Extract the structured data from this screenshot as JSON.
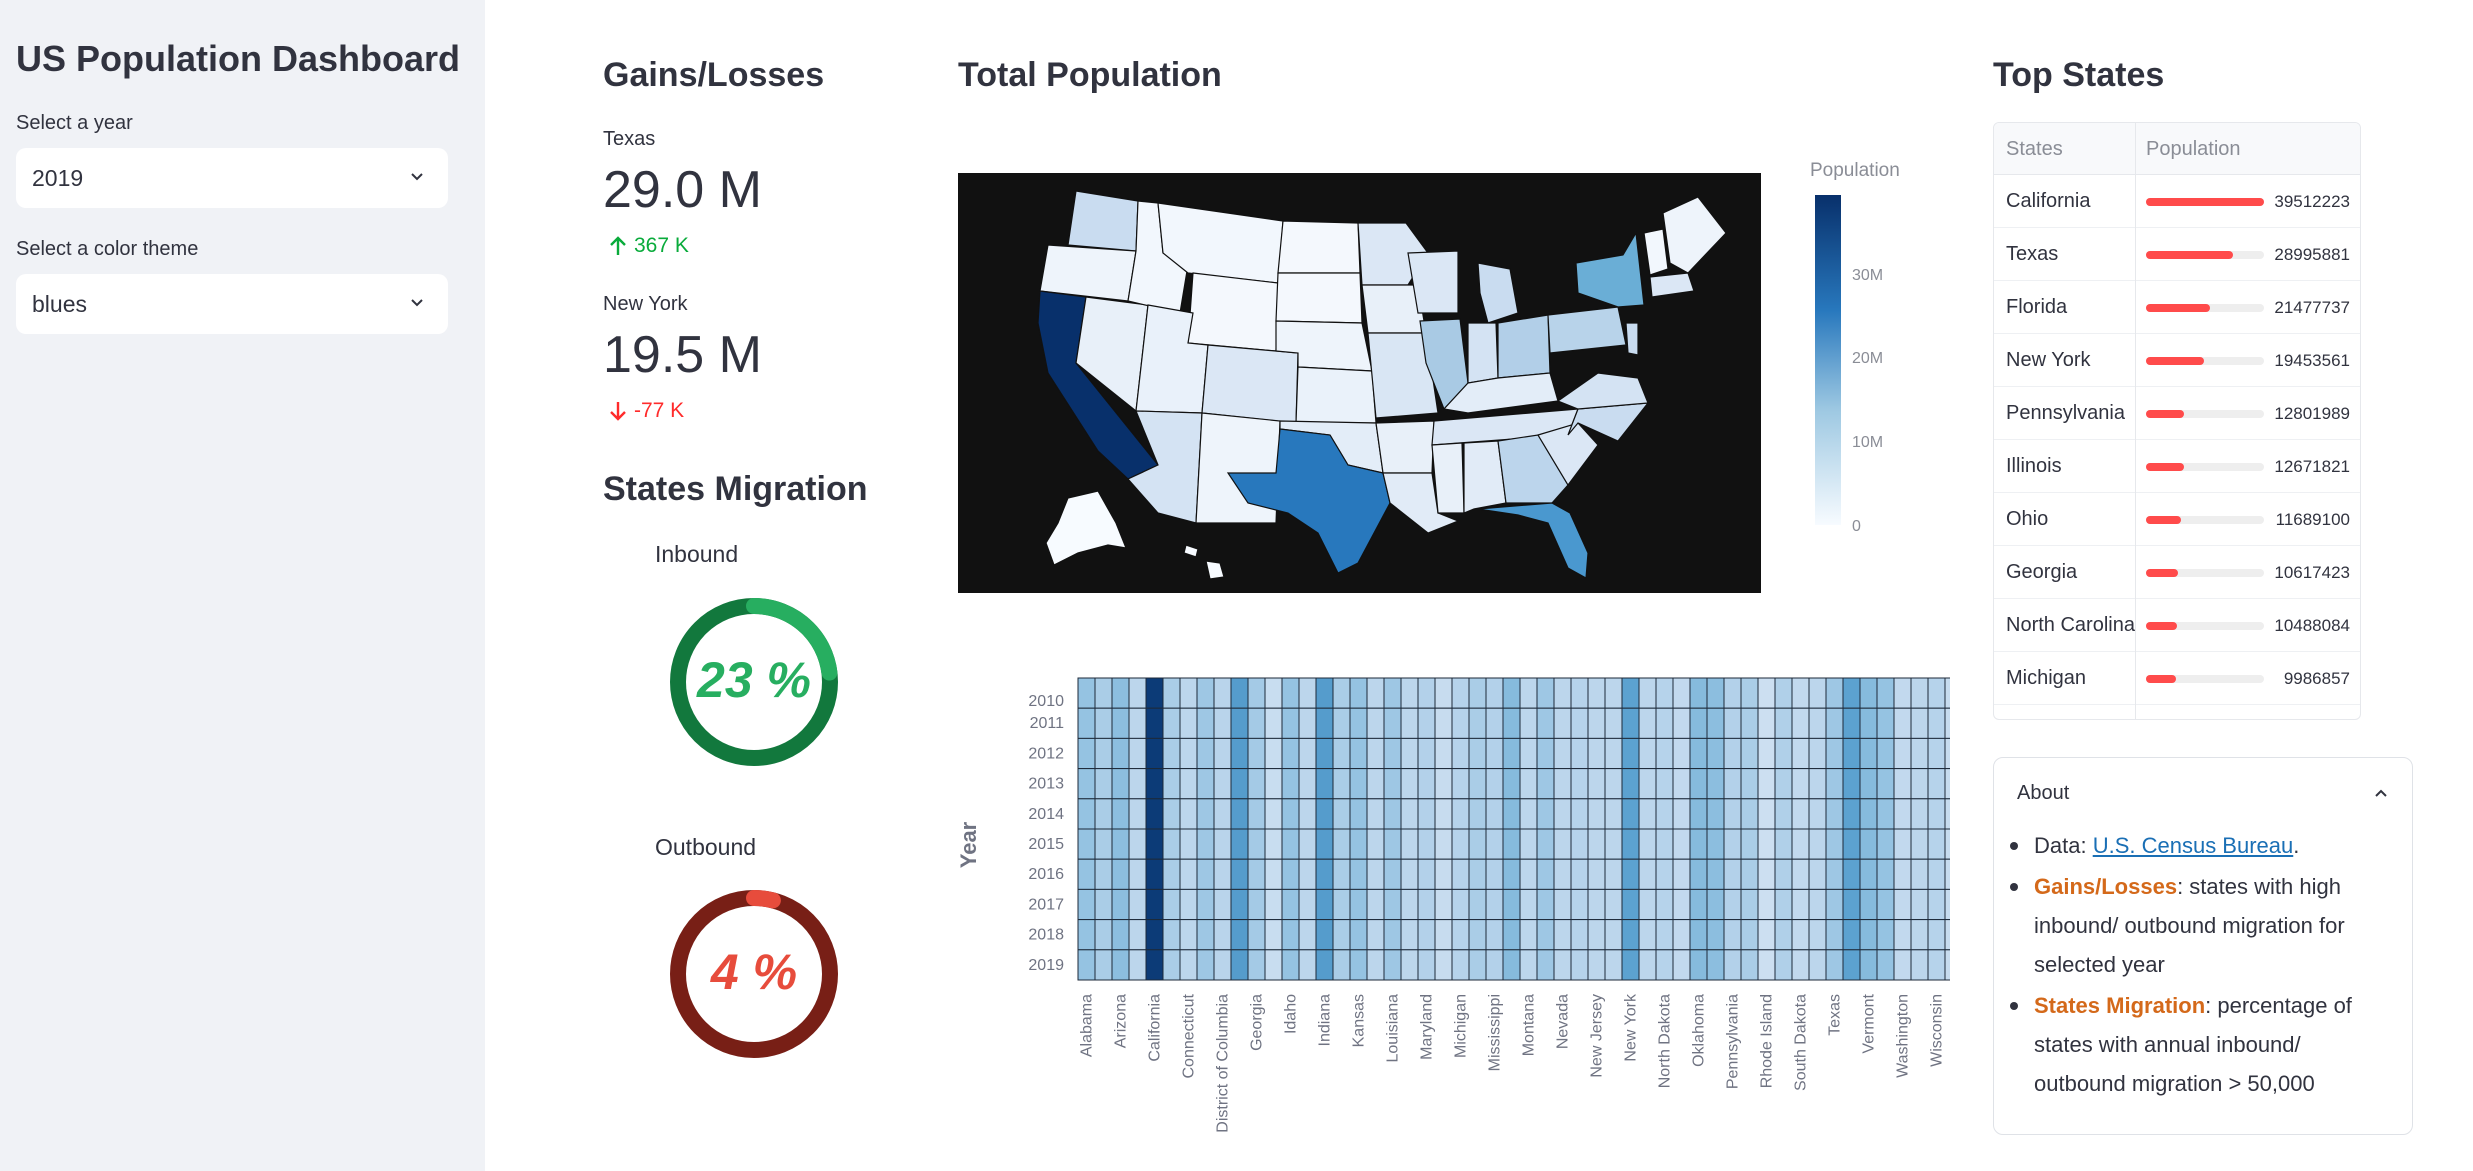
{
  "sidebar": {
    "title": "US Population Dashboard",
    "year_label": "Select a year",
    "year_value": "2019",
    "theme_label": "Select a color theme",
    "theme_value": "blues"
  },
  "gains": {
    "heading": "Gains/Losses",
    "top": {
      "state": "Texas",
      "value": "29.0 M",
      "delta": "367 K",
      "direction": "up",
      "color": "#09ab3b"
    },
    "bottom": {
      "state": "New York",
      "value": "19.5 M",
      "delta": "-77 K",
      "direction": "down",
      "color": "#ff2b2b"
    }
  },
  "migration": {
    "heading": "States Migration",
    "inbound": {
      "label": "Inbound",
      "percent": 23,
      "text": "23 %",
      "color": "#27ae60",
      "track": "#12783d"
    },
    "outbound": {
      "label": "Outbound",
      "percent": 4,
      "text": "4 %",
      "color": "#e74c3c",
      "track": "#781f16"
    }
  },
  "map": {
    "heading": "Total Population",
    "colorbar_title": "Population",
    "colorbar_ticks": [
      "30M",
      "20M",
      "10M",
      "0"
    ]
  },
  "heatmap": {
    "ylabel": "Year",
    "years": [
      "2010",
      "2011",
      "2012",
      "2013",
      "2014",
      "2015",
      "2016",
      "2017",
      "2018",
      "2019"
    ],
    "xlabels": [
      "Alabama",
      "Arizona",
      "California",
      "Connecticut",
      "District of Columbia",
      "Georgia",
      "Idaho",
      "Indiana",
      "Kansas",
      "Louisiana",
      "Maryland",
      "Michigan",
      "Mississippi",
      "Montana",
      "Nevada",
      "New Jersey",
      "New York",
      "North Dakota",
      "Oklahoma",
      "Pennsylvania",
      "Rhode Island",
      "South Dakota",
      "Texas",
      "Vermont",
      "Washington",
      "Wisconsin"
    ],
    "column_levels": [
      0.25,
      0.18,
      0.28,
      0.12,
      0.95,
      0.18,
      0.12,
      0.22,
      0.13,
      0.48,
      0.2,
      0.07,
      0.25,
      0.12,
      0.48,
      0.18,
      0.25,
      0.12,
      0.22,
      0.12,
      0.15,
      0.08,
      0.14,
      0.18,
      0.15,
      0.3,
      0.12,
      0.22,
      0.12,
      0.14,
      0.12,
      0.12,
      0.45,
      0.12,
      0.14,
      0.1,
      0.3,
      0.28,
      0.15,
      0.18,
      0.05,
      0.16,
      0.1,
      0.12,
      0.22,
      0.45,
      0.3,
      0.25,
      0.1,
      0.12,
      0.14,
      0.08
    ]
  },
  "top_states": {
    "heading": "Top States",
    "col_states": "States",
    "col_population": "Population",
    "max": 39512223,
    "rows": [
      {
        "state": "California",
        "population": 39512223
      },
      {
        "state": "Texas",
        "population": 28995881
      },
      {
        "state": "Florida",
        "population": 21477737
      },
      {
        "state": "New York",
        "population": 19453561
      },
      {
        "state": "Pennsylvania",
        "population": 12801989
      },
      {
        "state": "Illinois",
        "population": 12671821
      },
      {
        "state": "Ohio",
        "population": 11689100
      },
      {
        "state": "Georgia",
        "population": 10617423
      },
      {
        "state": "North Carolina",
        "population": 10488084
      },
      {
        "state": "Michigan",
        "population": 9986857
      }
    ]
  },
  "about": {
    "title": "About",
    "data_prefix": "Data: ",
    "data_link": "U.S. Census Bureau",
    "data_suffix": ".",
    "gains_term": "Gains/Losses",
    "gains_text": ": states with high inbound/ outbound migration for selected year",
    "migration_term": "States Migration",
    "migration_text": ": percentage of states with annual inbound/ outbound migration > 50,000"
  }
}
